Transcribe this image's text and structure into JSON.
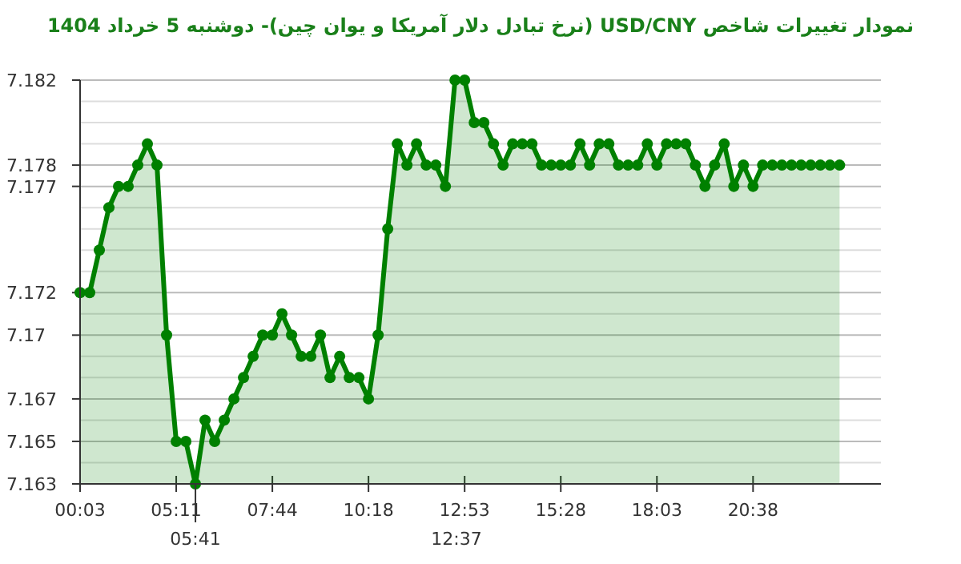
{
  "chart_data": {
    "type": "area",
    "title": "نمودار تغییرات شاخص USD/CNY (نرخ تبادل دلار آمریکا و یوان چین)- دوشنبه  5 خرداد 1404",
    "categories": [
      "00:03",
      null,
      null,
      null,
      null,
      null,
      null,
      null,
      null,
      null,
      "05:11",
      null,
      null,
      null,
      null,
      null,
      null,
      null,
      null,
      null,
      "07:44",
      null,
      null,
      null,
      null,
      null,
      null,
      null,
      null,
      null,
      "10:18",
      null,
      null,
      null,
      null,
      null,
      null,
      null,
      null,
      null,
      "12:53",
      null,
      null,
      null,
      null,
      null,
      null,
      null,
      null,
      null,
      "15:28",
      null,
      null,
      null,
      null,
      null,
      null,
      null,
      null,
      null,
      "18:03",
      null,
      null,
      null,
      null,
      null,
      null,
      null,
      null,
      null,
      "20:38",
      null,
      null,
      null,
      null,
      null,
      null,
      null,
      null,
      null
    ],
    "series": [
      {
        "color": "#008000",
        "values": [
          7.172,
          7.172,
          7.174,
          7.176,
          7.177,
          7.177,
          7.178,
          7.179,
          7.178,
          7.17,
          7.165,
          7.165,
          7.163,
          7.166,
          7.165,
          7.166,
          7.167,
          7.168,
          7.169,
          7.17,
          7.17,
          7.171,
          7.17,
          7.169,
          7.169,
          7.17,
          7.168,
          7.169,
          7.168,
          7.168,
          7.167,
          7.17,
          7.175,
          7.179,
          7.178,
          7.179,
          7.178,
          7.178,
          7.177,
          7.182,
          7.182,
          7.18,
          7.18,
          7.179,
          7.178,
          7.179,
          7.179,
          7.179,
          7.178,
          7.178,
          7.178,
          7.178,
          7.179,
          7.178,
          7.179,
          7.179,
          7.178,
          7.178,
          7.178,
          7.179,
          7.178,
          7.179,
          7.179,
          7.179,
          7.178,
          7.177,
          7.178,
          7.179,
          7.177,
          7.178,
          7.177,
          7.178,
          7.178,
          7.178,
          7.178,
          7.178,
          7.178,
          7.178,
          7.178,
          7.178
        ]
      }
    ],
    "ylim": [
      7.163,
      7.182
    ],
    "yticks": [
      7.163,
      {
        "value": 7.164,
        "label": null
      },
      7.165,
      {
        "value": 7.166,
        "label": null
      },
      7.167,
      {
        "value": 7.168,
        "label": null
      },
      {
        "value": 7.169,
        "label": null
      },
      {
        "value": 7.17,
        "label": "7.17"
      },
      {
        "value": 7.171,
        "label": null
      },
      7.172,
      {
        "value": 7.173,
        "label": null
      },
      {
        "value": 7.174,
        "label": null
      },
      {
        "value": 7.175,
        "label": null
      },
      {
        "value": 7.176,
        "label": null
      },
      7.177,
      7.178,
      {
        "value": 7.179,
        "label": null
      },
      {
        "value": 7.18,
        "label": null
      },
      {
        "value": 7.181,
        "label": null
      },
      7.182
    ],
    "annotations": [
      {
        "text": "05:41",
        "y": 7.163
      },
      "12:37"
    ],
    "grid": "y",
    "marker": "circle",
    "line_style": "solid"
  }
}
